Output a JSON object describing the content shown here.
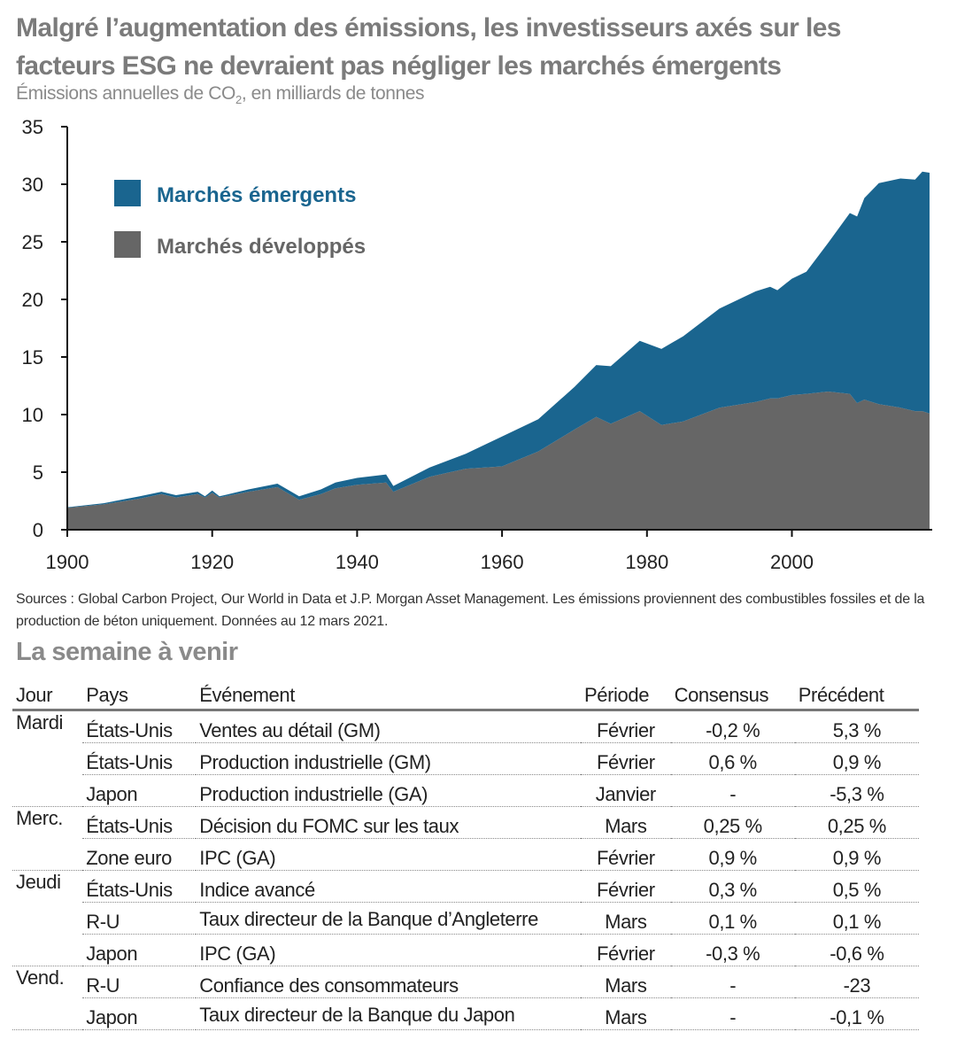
{
  "title": "Malgré l’augmentation des émissions, les investisseurs axés sur les facteurs ESG ne devraient pas négliger les marchés émergents",
  "subtitle_pre": "Émissions annuelles de CO",
  "subtitle_sub": "2",
  "subtitle_post": ", en milliards de tonnes",
  "chart_data": {
    "type": "area",
    "stacked": true,
    "title": "",
    "xlabel": "",
    "ylabel": "",
    "xlim": [
      1900,
      2019
    ],
    "ylim": [
      0,
      35
    ],
    "yticks": [
      0,
      5,
      10,
      15,
      20,
      25,
      30,
      35
    ],
    "xticks": [
      1900,
      1920,
      1940,
      1960,
      1980,
      2000
    ],
    "grid": false,
    "legend_position": "top-left",
    "x": [
      1900,
      1905,
      1910,
      1913,
      1915,
      1918,
      1919,
      1920,
      1921,
      1925,
      1929,
      1932,
      1935,
      1937,
      1940,
      1944,
      1945,
      1950,
      1955,
      1960,
      1965,
      1970,
      1973,
      1975,
      1979,
      1982,
      1985,
      1990,
      1995,
      1997,
      1998,
      2000,
      2002,
      2005,
      2008,
      2009,
      2010,
      2012,
      2015,
      2017,
      2018,
      2019
    ],
    "series": [
      {
        "name": "Marchés développés",
        "color": "#666666",
        "values": [
          1.9,
          2.2,
          2.7,
          3.1,
          2.8,
          3.1,
          2.8,
          3.2,
          2.8,
          3.3,
          3.7,
          2.6,
          3.1,
          3.6,
          3.9,
          4.1,
          3.3,
          4.6,
          5.3,
          5.5,
          6.8,
          8.7,
          9.8,
          9.2,
          10.3,
          9.1,
          9.4,
          10.6,
          11.1,
          11.4,
          11.4,
          11.7,
          11.8,
          12.0,
          11.8,
          11.0,
          11.3,
          10.9,
          10.6,
          10.3,
          10.3,
          10.1
        ]
      },
      {
        "name": "Marchés émergents",
        "color": "#1a658f",
        "values": [
          0.05,
          0.1,
          0.2,
          0.2,
          0.2,
          0.2,
          0.1,
          0.2,
          0.1,
          0.2,
          0.3,
          0.3,
          0.4,
          0.5,
          0.6,
          0.7,
          0.5,
          0.8,
          1.3,
          2.6,
          2.8,
          3.7,
          4.5,
          5.0,
          6.1,
          6.6,
          7.4,
          8.6,
          9.6,
          9.7,
          9.4,
          10.1,
          10.6,
          12.9,
          15.7,
          16.2,
          17.5,
          19.2,
          19.9,
          20.1,
          20.8,
          20.9
        ]
      }
    ]
  },
  "notes": "Sources : Global Carbon Project, Our World in Data et J.P. Morgan Asset Management. Les émissions proviennent des combustibles fossiles et de la production de béton uniquement. Données au 12 mars 2021.",
  "week": {
    "heading": "La semaine à venir",
    "columns": [
      "Jour",
      "Pays",
      "Événement",
      "Période",
      "Consensus",
      "Précédent"
    ],
    "rows": [
      {
        "day": "Mardi",
        "country": "États-Unis",
        "event": "Ventes au détail (GM)",
        "period": "Février",
        "consensus": "-0,2 %",
        "previous": "5,3 %"
      },
      {
        "day": "",
        "country": "États-Unis",
        "event": "Production industrielle (GM)",
        "period": "Février",
        "consensus": "0,6 %",
        "previous": "0,9 %"
      },
      {
        "day": "",
        "country": "Japon",
        "event": "Production industrielle (GA)",
        "period": "Janvier",
        "consensus": "-",
        "previous": "-5,3 %"
      },
      {
        "day": "Merc.",
        "country": "États-Unis",
        "event": "Décision du FOMC sur les taux",
        "period": "Mars",
        "consensus": "0,25 %",
        "previous": "0,25 %"
      },
      {
        "day": "",
        "country": "Zone euro",
        "event": "IPC (GA)",
        "period": "Février",
        "consensus": "0,9 %",
        "previous": "0,9 %"
      },
      {
        "day": "Jeudi",
        "country": "États-Unis",
        "event": "Indice avancé",
        "period": "Février",
        "consensus": "0,3 %",
        "previous": "0,5 %"
      },
      {
        "day": "",
        "country": "R-U",
        "event": "Taux directeur de la Banque d’Angleterre",
        "period": "Mars",
        "consensus": "0,1 %",
        "previous": "0,1 %"
      },
      {
        "day": "",
        "country": "Japon",
        "event": "IPC (GA)",
        "period": "Février",
        "consensus": "-0,3 %",
        "previous": "-0,6 %"
      },
      {
        "day": "Vend.",
        "country": "R-U",
        "event": "Confiance des consommateurs",
        "period": "Mars",
        "consensus": "-",
        "previous": "-23"
      },
      {
        "day": "",
        "country": "Japon",
        "event": "Taux directeur de la Banque du Japon",
        "period": "Mars",
        "consensus": "-",
        "previous": "-0,1 %"
      }
    ]
  }
}
